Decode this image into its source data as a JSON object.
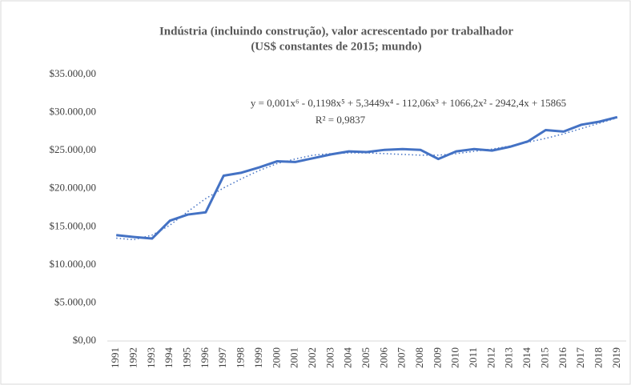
{
  "chart_data": {
    "type": "line",
    "title": "Indústria (incluindo construção), valor acrescentado por trabalhador",
    "subtitle": "(US$ constantes de 2015; mundo)",
    "categories": [
      "1991",
      "1992",
      "1993",
      "1994",
      "1995",
      "1996",
      "1997",
      "1998",
      "1999",
      "2000",
      "2001",
      "2002",
      "2003",
      "2004",
      "2005",
      "2006",
      "2007",
      "2008",
      "2009",
      "2010",
      "2011",
      "2012",
      "2013",
      "2014",
      "2015",
      "2016",
      "2017",
      "2018",
      "2019"
    ],
    "values": [
      13900,
      13650,
      13450,
      15800,
      16600,
      16900,
      21700,
      22100,
      22800,
      23600,
      23500,
      24000,
      24500,
      24900,
      24800,
      25100,
      25200,
      25100,
      23900,
      24900,
      25200,
      25000,
      25500,
      26200,
      27700,
      27500,
      28400,
      28800,
      29400
    ],
    "color": "#4472c4",
    "trendline": {
      "values": [
        13500,
        13300,
        13900,
        15200,
        17000,
        18700,
        20100,
        21300,
        22400,
        23300,
        23900,
        24400,
        24600,
        24700,
        24700,
        24600,
        24500,
        24400,
        24400,
        24600,
        24900,
        25200,
        25600,
        26100,
        26600,
        27200,
        27900,
        28600,
        29300
      ],
      "equation": "y = 0,001x⁶ - 0,1198x⁵ + 5,3449x⁴ - 112,06x³ + 1066,2x² - 2942,4x + 15865",
      "r2": "R² = 0,9837"
    },
    "ylim": [
      0,
      35000
    ],
    "yticks": [
      {
        "value": 0,
        "label": "$0,00"
      },
      {
        "value": 5000,
        "label": "$5.000,00"
      },
      {
        "value": 10000,
        "label": "$10.000,00"
      },
      {
        "value": 15000,
        "label": "$15.000,00"
      },
      {
        "value": 20000,
        "label": "$20.000,00"
      },
      {
        "value": 25000,
        "label": "$25.000,00"
      },
      {
        "value": 30000,
        "label": "$30.000,00"
      },
      {
        "value": 35000,
        "label": "$35.000,00"
      }
    ],
    "grid": false
  }
}
